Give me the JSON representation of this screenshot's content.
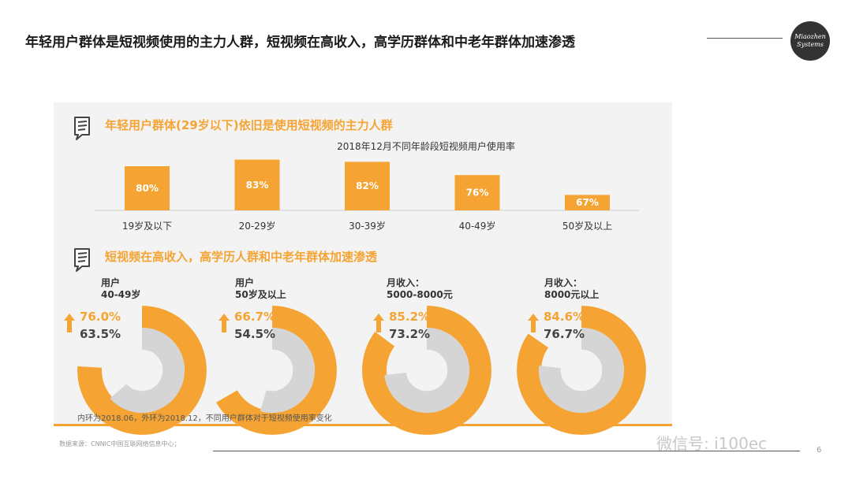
{
  "header": {
    "title": "年轻用户群体是短视频使用的主力人群，短视频在高收入，高学历群体和中老年群体加速渗透",
    "logo_line1": "Miaozhen",
    "logo_line2": "Systems"
  },
  "section1": {
    "title": "年轻用户群体(29岁以下)依旧是使用短视频的主力人群"
  },
  "section2": {
    "title": "短视频在高收入，高学历人群和中老年群体加速渗透"
  },
  "colors": {
    "accent": "#f5a433",
    "inner_ring": "#d5d5d5",
    "panel": "#f3f3f3"
  },
  "chart_data": [
    {
      "type": "bar",
      "title": "2018年12月不同年龄段短视频用户使用率",
      "categories": [
        "19岁及以下",
        "20-29岁",
        "30-39岁",
        "40-49岁",
        "50岁及以上"
      ],
      "values": [
        80,
        83,
        82,
        76,
        67
      ],
      "value_labels": [
        "80%",
        "83%",
        "82%",
        "76%",
        "67%"
      ],
      "ylim": [
        60,
        85
      ]
    },
    {
      "type": "pie",
      "subtype": "donut-comparison",
      "note": "内环为2018.06，外环为2018.12，不同用户群体对于短视频使用率变化",
      "groups": [
        {
          "label_line1": "用户",
          "label_line2": "40-49岁",
          "outer": 76.0,
          "inner": 63.5,
          "outer_label": "76.0%",
          "inner_label": "63.5%"
        },
        {
          "label_line1": "用户",
          "label_line2": "50岁及以上",
          "outer": 66.7,
          "inner": 54.5,
          "outer_label": "66.7%",
          "inner_label": "54.5%"
        },
        {
          "label_line1": "月收入：",
          "label_line2": "5000-8000元",
          "outer": 85.2,
          "inner": 73.2,
          "outer_label": "85.2%",
          "inner_label": "73.2%"
        },
        {
          "label_line1": "月收入：",
          "label_line2": "8000元以上",
          "outer": 84.6,
          "inner": 76.7,
          "outer_label": "84.6%",
          "inner_label": "76.7%"
        }
      ]
    }
  ],
  "footer": {
    "source": "数据来源：CNNIC中国互联网络信息中心；",
    "watermark": "微信号: i100ec",
    "page": "6"
  }
}
